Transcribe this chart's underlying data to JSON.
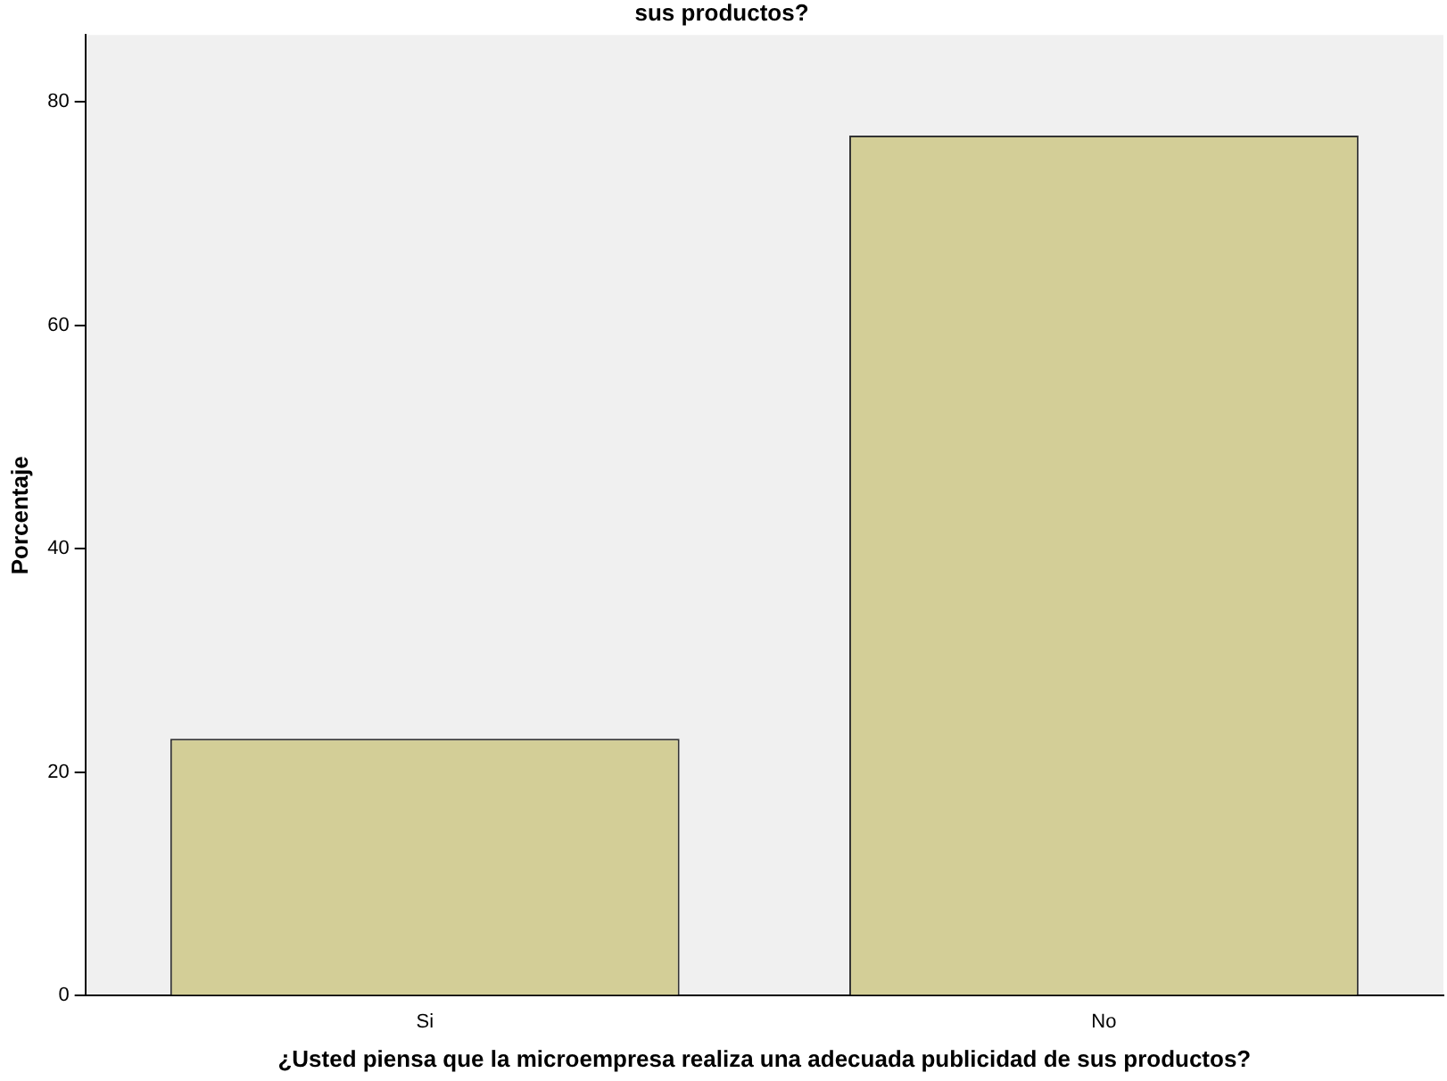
{
  "chart_data": {
    "type": "bar",
    "title": "sus productos?",
    "xlabel": "¿Usted piensa que la microempresa realiza una adecuada publicidad de sus productos?",
    "ylabel": "Porcentaje",
    "categories": [
      "Si",
      "No"
    ],
    "values": [
      23,
      77
    ],
    "color": "#d3ce97",
    "ylim": [
      0,
      86
    ],
    "yticks": [
      0,
      20,
      40,
      60,
      80
    ],
    "grid": false,
    "legend": false
  }
}
